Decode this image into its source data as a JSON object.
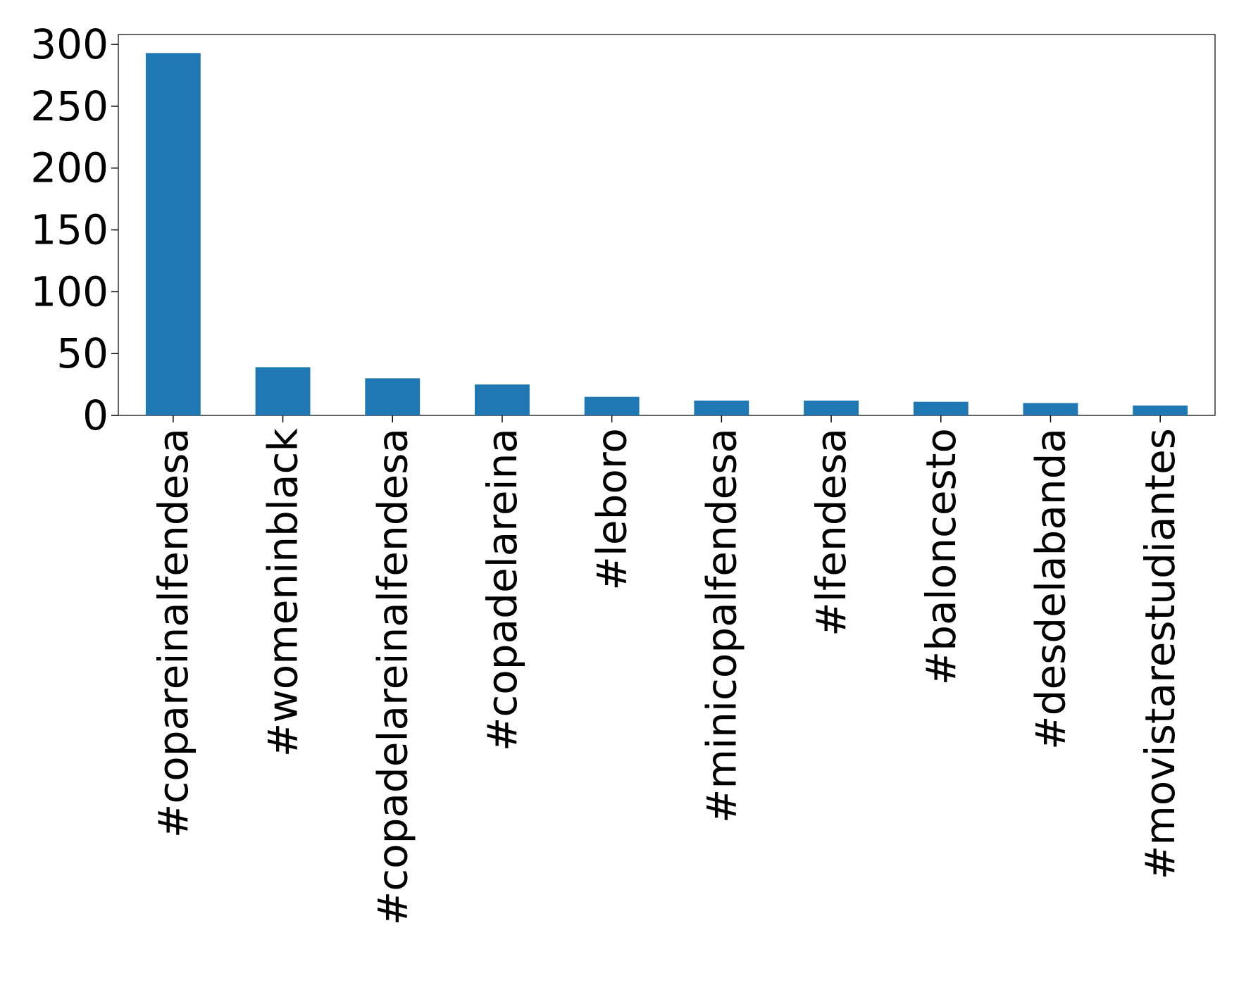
{
  "chart_data": {
    "type": "bar",
    "categories": [
      "#copareinalfendesa",
      "#womeninblack",
      "#copadelareinalfendesa",
      "#copadelareina",
      "#leboro",
      "#minicopalfendesa",
      "#lfendesa",
      "#baloncesto",
      "#desdelabanda",
      "#movistarestudiantes"
    ],
    "values": [
      293,
      39,
      30,
      25,
      15,
      12,
      12,
      11,
      10,
      8
    ],
    "ylim": [
      0,
      308
    ],
    "yticks": [
      0,
      50,
      100,
      150,
      200,
      250,
      300
    ],
    "title": "",
    "xlabel": "",
    "ylabel": "",
    "grid": false,
    "legend": "none",
    "bar_color": "#1f77b4"
  }
}
